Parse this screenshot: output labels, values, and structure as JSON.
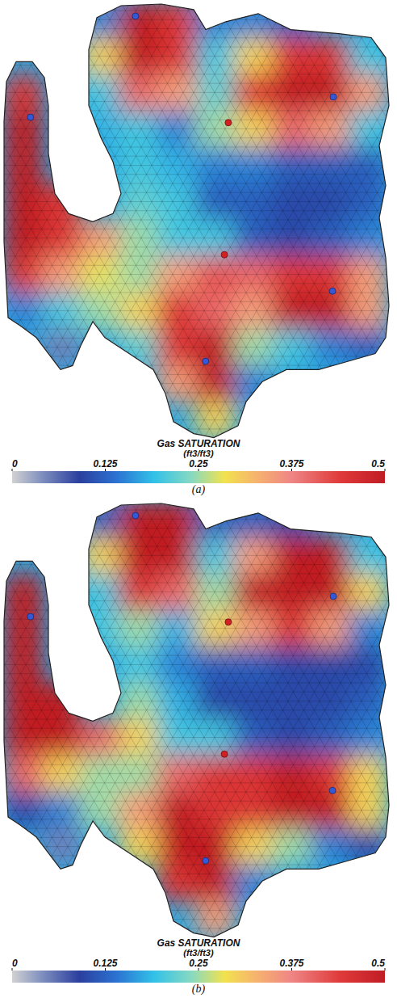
{
  "chart_data": [
    {
      "type": "heatmap",
      "panel": "(a)",
      "title": "Gas SATURATION",
      "colorbar": {
        "label": "(ft3/ft3)",
        "lim": [
          0,
          0.5
        ],
        "ticks": [
          0,
          0.125,
          0.25,
          0.375,
          0.5
        ]
      },
      "cells": [
        [
          null,
          null,
          0.15,
          0.5,
          0.45,
          0.15,
          0.15,
          0.12,
          null,
          null
        ],
        [
          null,
          null,
          0.3,
          0.5,
          0.45,
          0.2,
          0.3,
          0.45,
          0.45,
          0.2
        ],
        [
          0.45,
          null,
          0.2,
          0.4,
          0.35,
          0.22,
          0.45,
          0.5,
          0.5,
          0.35
        ],
        [
          0.5,
          null,
          0.18,
          0.2,
          0.15,
          0.25,
          0.3,
          0.4,
          0.35,
          0.2
        ],
        [
          0.5,
          null,
          null,
          0.2,
          0.18,
          0.15,
          0.15,
          0.12,
          0.12,
          0.12
        ],
        [
          0.5,
          0.45,
          null,
          0.22,
          0.2,
          0.12,
          0.12,
          0.1,
          0.1,
          0.12
        ],
        [
          0.5,
          0.45,
          0.35,
          0.25,
          0.2,
          0.2,
          0.12,
          0.1,
          0.12,
          0.15
        ],
        [
          0.45,
          0.35,
          0.28,
          0.25,
          0.35,
          0.42,
          0.4,
          0.45,
          0.45,
          0.35
        ],
        [
          0.15,
          0.2,
          0.25,
          0.3,
          0.45,
          0.4,
          0.35,
          0.5,
          0.5,
          0.35
        ],
        [
          null,
          0.05,
          null,
          0.22,
          0.45,
          0.5,
          0.25,
          0.2,
          0.15,
          0.12
        ],
        [
          null,
          null,
          null,
          null,
          0.35,
          0.5,
          0.15,
          null,
          null,
          null
        ],
        [
          null,
          null,
          null,
          null,
          null,
          0.3,
          null,
          null,
          null,
          null
        ]
      ],
      "injectors": [
        {
          "x": 3.43,
          "y": 0.4
        },
        {
          "x": 8.59,
          "y": 2.62
        },
        {
          "x": 0.69,
          "y": 3.18
        },
        {
          "x": 5.26,
          "y": 9.89
        },
        {
          "x": 8.57,
          "y": 7.96
        }
      ],
      "producers": [
        {
          "x": 5.85,
          "y": 3.33
        },
        {
          "x": 5.75,
          "y": 6.96
        }
      ]
    },
    {
      "type": "heatmap",
      "panel": "(b)",
      "title": "Gas SATURATION",
      "colorbar": {
        "label": "(ft3/ft3)",
        "lim": [
          0,
          0.5
        ],
        "ticks": [
          0,
          0.125,
          0.25,
          0.375,
          0.5
        ]
      },
      "cells": [
        [
          null,
          null,
          0.12,
          0.5,
          0.5,
          0.12,
          0.12,
          0.1,
          null,
          null
        ],
        [
          null,
          null,
          0.3,
          0.5,
          0.5,
          0.2,
          0.35,
          0.5,
          0.5,
          0.2
        ],
        [
          0.5,
          null,
          0.2,
          0.45,
          0.4,
          0.25,
          0.5,
          0.5,
          0.5,
          0.3
        ],
        [
          0.5,
          null,
          0.2,
          0.25,
          0.18,
          0.3,
          0.35,
          0.45,
          0.35,
          0.15
        ],
        [
          0.5,
          null,
          null,
          0.2,
          0.15,
          0.12,
          0.12,
          0.1,
          0.1,
          0.1
        ],
        [
          0.5,
          0.5,
          null,
          0.25,
          0.18,
          0.1,
          0.1,
          0.1,
          0.1,
          0.12
        ],
        [
          0.5,
          0.5,
          0.4,
          0.3,
          0.2,
          0.2,
          0.12,
          0.1,
          0.12,
          0.15
        ],
        [
          0.4,
          0.3,
          0.25,
          0.25,
          0.4,
          0.45,
          0.45,
          0.5,
          0.45,
          0.3
        ],
        [
          0.1,
          0.15,
          0.25,
          0.35,
          0.5,
          0.45,
          0.45,
          0.5,
          0.5,
          0.3
        ],
        [
          null,
          0.05,
          null,
          0.3,
          0.5,
          0.5,
          0.3,
          0.25,
          0.15,
          0.1
        ],
        [
          null,
          null,
          null,
          null,
          0.45,
          0.5,
          0.15,
          null,
          null,
          null
        ],
        [
          null,
          null,
          null,
          null,
          null,
          0.35,
          null,
          null,
          null,
          null
        ]
      ],
      "injectors": [
        {
          "x": 3.43,
          "y": 0.4
        },
        {
          "x": 8.59,
          "y": 2.62
        },
        {
          "x": 0.69,
          "y": 3.18
        },
        {
          "x": 5.26,
          "y": 9.89
        },
        {
          "x": 8.57,
          "y": 7.96
        }
      ],
      "producers": [
        {
          "x": 5.85,
          "y": 3.33
        },
        {
          "x": 5.75,
          "y": 6.96
        }
      ]
    }
  ]
}
